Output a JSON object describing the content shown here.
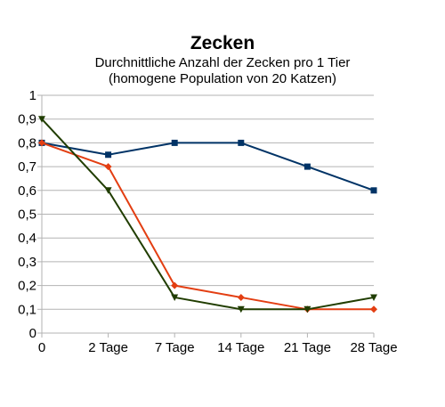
{
  "chart_data": {
    "type": "line",
    "title": "Zecken",
    "subtitle_lines": [
      "Durchnittliche Anzahl der Zecken pro 1 Tier",
      "(homogene Population von 20 Katzen)"
    ],
    "categories": [
      "0",
      "2 Tage",
      "7 Tage",
      "14 Tage",
      "21 Tage",
      "28 Tage"
    ],
    "ylim": [
      0,
      1
    ],
    "yticks": [
      "0",
      "0,1",
      "0,2",
      "0,3",
      "0,4",
      "0,5",
      "0,6",
      "0,7",
      "0,8",
      "0,9",
      "1"
    ],
    "grid": true,
    "xlabel": "",
    "ylabel": "",
    "series": [
      {
        "color": "#003366",
        "marker": "square",
        "values": [
          0.8,
          0.75,
          0.8,
          0.8,
          0.7,
          0.6
        ]
      },
      {
        "color": "#e33e12",
        "marker": "diamond",
        "values": [
          0.8,
          0.7,
          0.2,
          0.15,
          0.1,
          0.1
        ]
      },
      {
        "color": "#203d00",
        "marker": "triangle-down",
        "values": [
          0.9,
          0.6,
          0.15,
          0.1,
          0.1,
          0.15
        ]
      }
    ]
  }
}
